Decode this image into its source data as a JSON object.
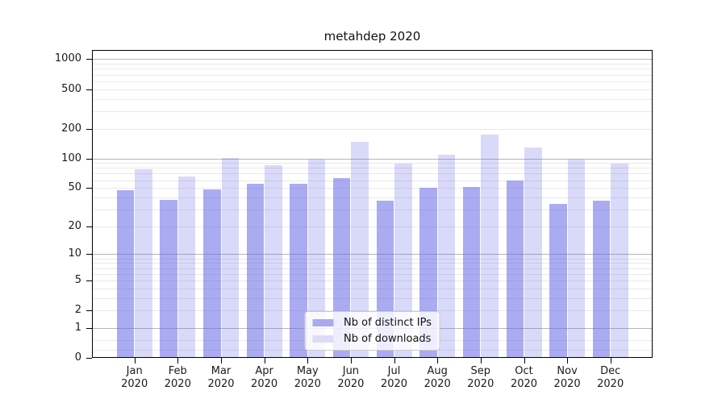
{
  "title": "metahdep 2020",
  "legend": {
    "items": [
      {
        "label": "Nb of distinct IPs",
        "color": "#a9a9f0"
      },
      {
        "label": "Nb of downloads",
        "color": "#dcdcf8"
      }
    ]
  },
  "chart_data": {
    "type": "bar",
    "title": "metahdep 2020",
    "categories": [
      "Jan 2020",
      "Feb 2020",
      "Mar 2020",
      "Apr 2020",
      "May 2020",
      "Jun 2020",
      "Jul 2020",
      "Aug 2020",
      "Sep 2020",
      "Oct 2020",
      "Nov 2020",
      "Dec 2020"
    ],
    "series": [
      {
        "name": "Nb of distinct IPs",
        "values": [
          47,
          38,
          48,
          55,
          55,
          63,
          37,
          50,
          51,
          60,
          34,
          37
        ],
        "fill": "rgba(102,102,232,0.55)",
        "legend_hex": "#a9a9f0"
      },
      {
        "name": "Nb of downloads",
        "values": [
          78,
          65,
          101,
          85,
          98,
          147,
          89,
          109,
          173,
          128,
          97,
          88
        ],
        "fill": "rgba(102,102,232,0.25)",
        "legend_hex": "#dcdcf8"
      }
    ],
    "yscale": "log(1+v)",
    "yticks": [
      0,
      1,
      2,
      5,
      10,
      20,
      50,
      100,
      200,
      500,
      1000
    ],
    "ylim": [
      0,
      1240
    ],
    "xlabel": "",
    "ylabel": "",
    "grid": true,
    "legend_position": "lower center"
  },
  "colors": {
    "bar_base": "#6666e8",
    "grid_major": "#b5b5b5",
    "grid_minor": "#e9e9e9",
    "spine": "#000000",
    "legend_border": "#cccccc"
  }
}
